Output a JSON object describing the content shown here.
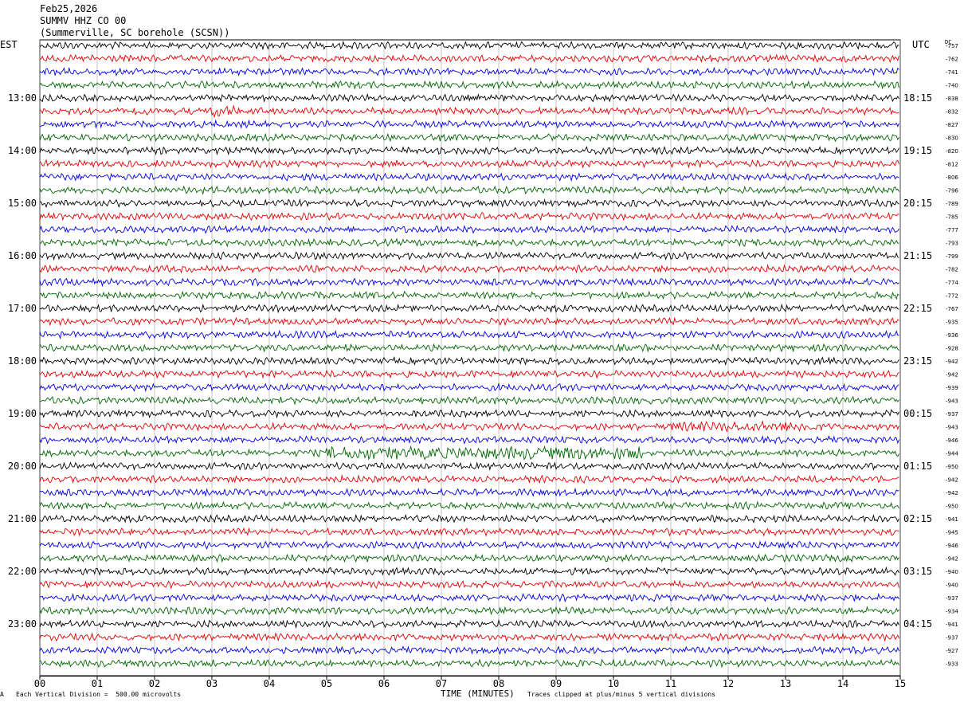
{
  "header": {
    "date": "Feb25,2026",
    "station": "SUMMV HHZ CO 00",
    "location": "(Summerville, SC borehole (SCSN))"
  },
  "left_tz": "EST",
  "right_tz": "UTC",
  "dc_label": "DC",
  "footer": {
    "scale": "Each Vertical Division =  500.00 microvolts",
    "clip": "Traces clipped at plus/minus 5 vertical divisions",
    "corner_mark": "A"
  },
  "chart_data": {
    "type": "line",
    "xlabel": "TIME (MINUTES)",
    "xlim": [
      0,
      15
    ],
    "x_ticks": [
      "00",
      "01",
      "02",
      "03",
      "04",
      "05",
      "06",
      "07",
      "08",
      "09",
      "10",
      "11",
      "12",
      "13",
      "14",
      "15"
    ],
    "trace_minutes": 15,
    "trace_colors": [
      "#000000",
      "#e00000",
      "#0000e0",
      "#006400"
    ],
    "left_hour_labels": [
      "13:00",
      "14:00",
      "15:00",
      "16:00",
      "17:00",
      "18:00",
      "19:00",
      "20:00",
      "21:00",
      "22:00",
      "23:00"
    ],
    "right_hour_labels": [
      "18:15",
      "19:15",
      "20:15",
      "21:15",
      "22:15",
      "23:15",
      "00:15",
      "01:15",
      "02:15",
      "03:15",
      "04:15"
    ],
    "dc_offsets": [
      -757,
      -762,
      -741,
      -740,
      -838,
      -832,
      -827,
      -830,
      -820,
      -812,
      -806,
      -796,
      -789,
      -785,
      -777,
      -793,
      -799,
      -782,
      -774,
      -772,
      -767,
      -935,
      -936,
      -928,
      -942,
      -942,
      -939,
      -943,
      -937,
      -943,
      -946,
      -944,
      -950,
      -942,
      -942,
      -950,
      -941,
      -945,
      -946,
      -942,
      -940,
      -940,
      -937,
      -934,
      -941,
      -937,
      -927,
      -933
    ],
    "events": [
      {
        "trace": 5,
        "start_min": 2.9,
        "end_min": 3.4,
        "amp": 2.0
      },
      {
        "trace": 29,
        "start_min": 11.0,
        "end_min": 13.5,
        "amp": 1.6
      },
      {
        "trace": 31,
        "start_min": 5.0,
        "end_min": 10.5,
        "amp": 2.2
      }
    ]
  }
}
